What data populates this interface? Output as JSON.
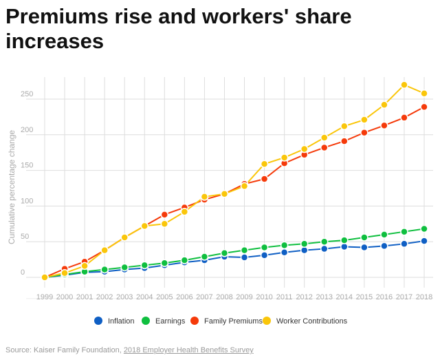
{
  "title": "Premiums rise and workers' share increases",
  "source": {
    "prefix": "Source: Kaiser Family Foundation, ",
    "link_text": "2018 Employer Health Benefits Survey"
  },
  "chart_data": {
    "type": "line",
    "title": "Premiums rise and workers' share increases",
    "xlabel": "",
    "ylabel": "Cumulative percentage change",
    "ylim": [
      -20,
      280
    ],
    "yticks": [
      0,
      50,
      100,
      150,
      200,
      250
    ],
    "grid": true,
    "legend": "bottom",
    "x": [
      1999,
      2000,
      2001,
      2002,
      2003,
      2004,
      2005,
      2006,
      2007,
      2008,
      2009,
      2010,
      2011,
      2012,
      2013,
      2014,
      2015,
      2016,
      2017,
      2018
    ],
    "series": [
      {
        "name": "Inflation",
        "color": "#0f5fc4",
        "values": [
          0,
          3,
          7,
          8,
          11,
          13,
          17,
          21,
          24,
          29,
          28,
          31,
          35,
          38,
          40,
          43,
          42,
          44,
          47,
          51
        ]
      },
      {
        "name": "Earnings",
        "color": "#0fbf3f",
        "values": [
          0,
          4,
          8,
          11,
          14,
          17,
          20,
          24,
          29,
          34,
          38,
          42,
          45,
          47,
          50,
          52,
          56,
          60,
          64,
          68
        ]
      },
      {
        "name": "Family Premiums",
        "color": "#f53a0a",
        "values": [
          0,
          12,
          22,
          38,
          56,
          72,
          88,
          98,
          109,
          117,
          131,
          138,
          160,
          172,
          182,
          191,
          203,
          213,
          224,
          239
        ]
      },
      {
        "name": "Worker Contributions",
        "color": "#fac60a",
        "values": [
          0,
          6,
          16,
          38,
          56,
          72,
          75,
          92,
          113,
          117,
          128,
          159,
          168,
          180,
          196,
          212,
          221,
          242,
          270,
          258
        ]
      }
    ]
  }
}
